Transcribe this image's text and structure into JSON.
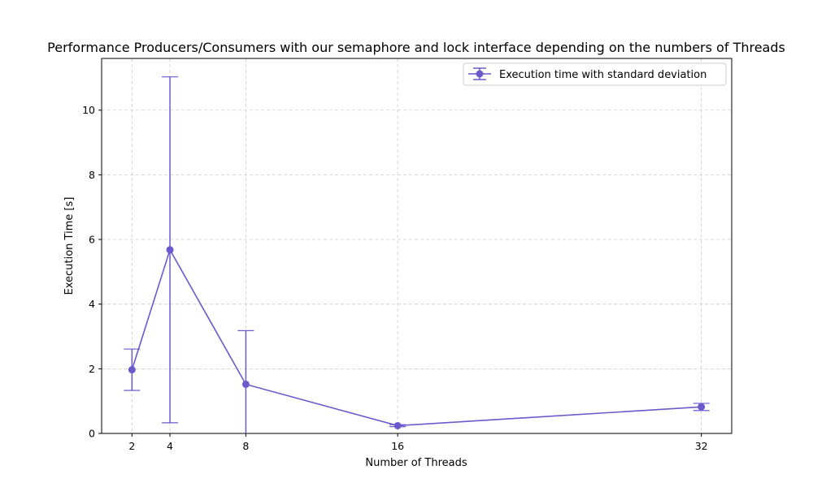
{
  "chart_data": {
    "type": "line",
    "title": "Performance Producers/Consumers with our semaphore and lock interface depending on the numbers of Threads",
    "xlabel": "Number of Threads",
    "ylabel": "Execution Time [s]",
    "x": [
      2,
      4,
      8,
      16,
      32
    ],
    "xticks": [
      2,
      4,
      8,
      16,
      32
    ],
    "yticks": [
      0,
      2,
      4,
      6,
      8,
      10
    ],
    "xlim": [
      0.4,
      33.6
    ],
    "ylim": [
      0,
      11.6
    ],
    "grid": true,
    "legend_position": "top-right",
    "color": "#6a5acd",
    "series": [
      {
        "name": "Execution time with standard deviation",
        "values": [
          1.97,
          5.68,
          1.52,
          0.24,
          0.82
        ],
        "error": [
          0.64,
          5.35,
          1.66,
          0.03,
          0.11
        ]
      }
    ]
  }
}
